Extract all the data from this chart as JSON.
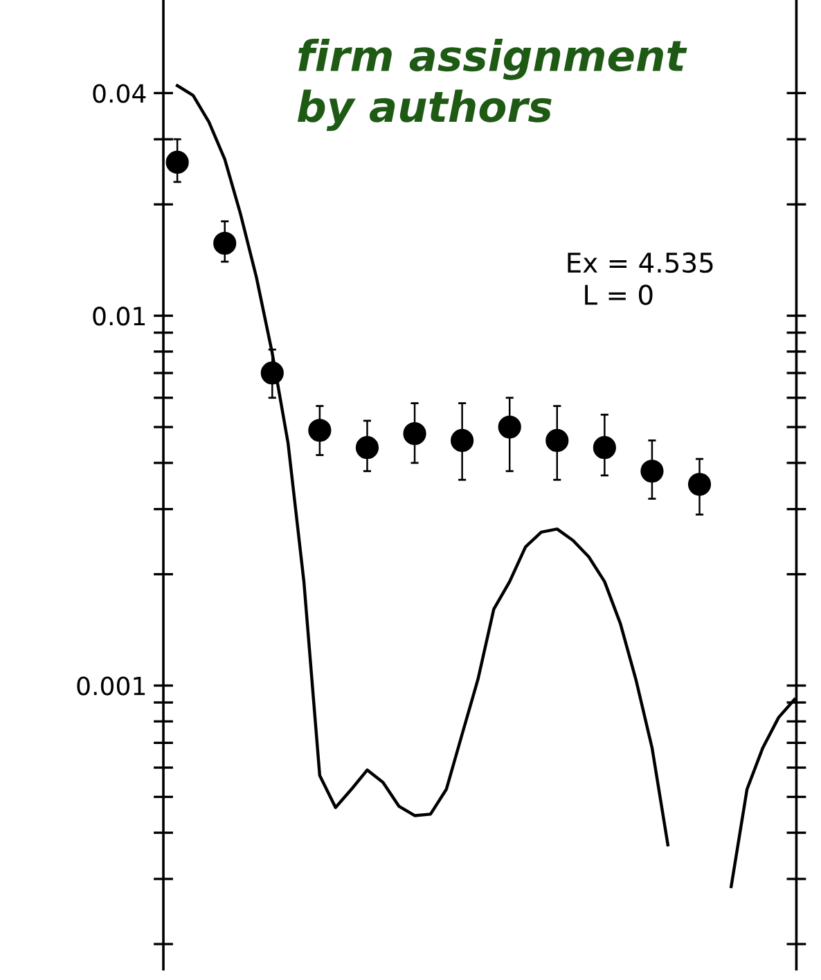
{
  "chart_data": {
    "type": "line",
    "annotations": [
      "firm assignment\nby authors",
      "Ex = 4.535\n  L = 0"
    ],
    "categories": [
      null,
      null,
      null,
      null,
      null,
      null,
      null,
      null,
      null,
      null,
      null,
      null,
      null,
      null,
      null,
      null,
      null,
      null,
      null,
      null,
      null,
      null,
      null,
      null,
      null,
      null,
      null,
      null,
      null,
      null,
      null,
      null,
      null,
      null,
      null,
      null,
      null,
      null,
      null,
      null
    ],
    "series": [
      {
        "type": "scatter",
        "color": "#000000",
        "marker": "circle",
        "values": [
          0.026,
          null,
          null,
          0.0157,
          null,
          null,
          0.007,
          null,
          null,
          0.0049,
          null,
          null,
          0.0044,
          null,
          null,
          0.0048,
          null,
          null,
          0.0046,
          null,
          null,
          0.005,
          null,
          null,
          0.0046,
          null,
          null,
          0.0044,
          null,
          null,
          0.0038,
          null,
          null,
          0.0035,
          null,
          null,
          null,
          null,
          null,
          null
        ],
        "errors": [
          [
            0.023,
            0.03
          ],
          null,
          null,
          [
            0.014,
            0.018
          ],
          null,
          null,
          [
            0.006,
            0.0081
          ],
          null,
          null,
          [
            0.0042,
            0.0057
          ],
          null,
          null,
          [
            0.0038,
            0.0052
          ],
          null,
          null,
          [
            0.004,
            0.0058
          ],
          null,
          null,
          [
            0.0036,
            0.0058
          ],
          null,
          null,
          [
            0.0038,
            0.006
          ],
          null,
          null,
          [
            0.0036,
            0.0057
          ],
          null,
          null,
          [
            0.0037,
            0.0054
          ],
          null,
          null,
          [
            0.0032,
            0.0046
          ],
          null,
          null,
          [
            0.0029,
            0.0041
          ],
          null,
          null,
          null,
          null,
          null,
          null
        ]
      },
      {
        "color": "#000000",
        "line_style": "solid",
        "values": [
          0.0419,
          0.0394,
          0.0334,
          0.0265,
          0.0188,
          0.0127,
          0.00792,
          0.00452,
          0.00191,
          0.000571,
          0.000468,
          0.000524,
          0.000591,
          0.000547,
          0.000472,
          0.000445,
          0.000449,
          0.000524,
          0.000739,
          0.00104,
          0.00161,
          0.00191,
          0.00237,
          0.0026,
          0.00265,
          0.00247,
          0.00223,
          0.00191,
          0.00147,
          0.00103,
          0.000679,
          0.000371,
          null,
          null,
          null,
          null,
          null,
          null,
          null,
          null
        ]
      },
      {
        "color": "#000000",
        "line_style": "solid",
        "values": [
          null,
          null,
          null,
          null,
          null,
          null,
          null,
          null,
          null,
          null,
          null,
          null,
          null,
          null,
          null,
          null,
          null,
          null,
          null,
          null,
          null,
          null,
          null,
          null,
          null,
          null,
          null,
          null,
          null,
          null,
          null,
          null,
          null,
          null,
          null,
          0.000286,
          0.000524,
          0.000679,
          0.00082,
          0.000917
        ]
      }
    ],
    "log": "y",
    "ylim": [
      0.000171,
      0.0714
    ],
    "yticks": [
      {
        "value": 0.0002,
        "label": null
      },
      {
        "value": 0.0003,
        "label": null
      },
      {
        "value": 0.0004,
        "label": null
      },
      {
        "value": 0.0005,
        "label": null
      },
      {
        "value": 0.0006,
        "label": null
      },
      {
        "value": 0.0007,
        "label": null
      },
      {
        "value": 0.0008,
        "label": null
      },
      {
        "value": 0.0009,
        "label": null
      },
      0.001,
      {
        "value": 0.002,
        "label": null
      },
      {
        "value": 0.003,
        "label": null
      },
      {
        "value": 0.004,
        "label": null
      },
      {
        "value": 0.005,
        "label": null
      },
      {
        "value": 0.006,
        "label": null
      },
      {
        "value": 0.007,
        "label": null
      },
      {
        "value": 0.008,
        "label": null
      },
      {
        "value": 0.009,
        "label": null
      },
      0.01,
      {
        "value": 0.02,
        "label": null
      },
      {
        "value": 0.03,
        "label": null
      },
      0.04
    ],
    "tick_labels": "y"
  }
}
